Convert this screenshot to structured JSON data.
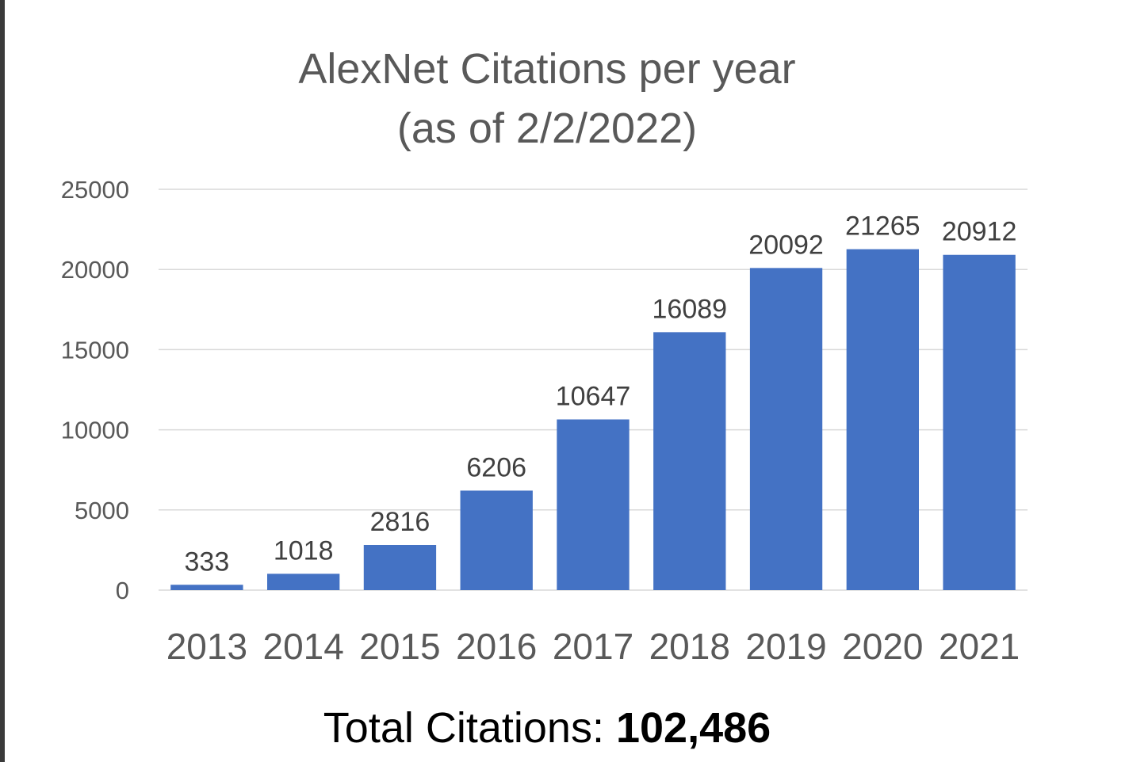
{
  "chart_data": {
    "type": "bar",
    "title_line_1": "AlexNet Citations per year",
    "title_line_2": "(as of 2/2/2022)",
    "categories": [
      "2013",
      "2014",
      "2015",
      "2016",
      "2017",
      "2018",
      "2019",
      "2020",
      "2021"
    ],
    "values": [
      333,
      1018,
      2816,
      6206,
      10647,
      16089,
      20092,
      21265,
      20912
    ],
    "data_labels": [
      "333",
      "1018",
      "2816",
      "6206",
      "10647",
      "16089",
      "20092",
      "21265",
      "20912"
    ],
    "ylim": [
      0,
      25000
    ],
    "y_ticks": [
      "0",
      "5000",
      "10000",
      "15000",
      "20000",
      "25000"
    ],
    "y_tick_values": [
      0,
      5000,
      10000,
      15000,
      20000,
      25000
    ],
    "xlabel": "",
    "ylabel": "",
    "grid": true,
    "legend": "none",
    "bar_color": "#4472C4",
    "grid_color": "#D9D9D9",
    "tick_label_color": "#595959",
    "data_label_color": "#404040"
  },
  "footer": {
    "total_label": "Total Citations:",
    "total_value": "102,486"
  }
}
